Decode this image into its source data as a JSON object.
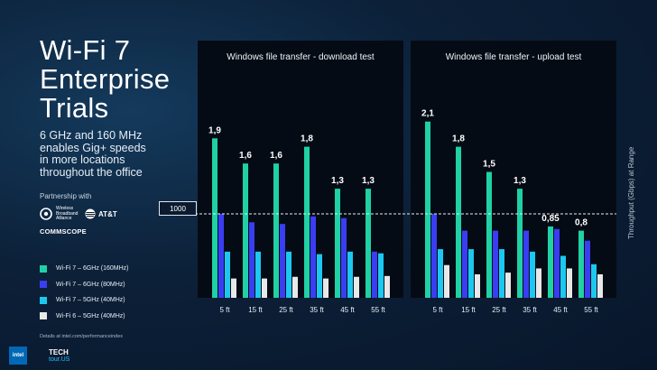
{
  "slide": {
    "title_lines": [
      "Wi-Fi 7",
      "Enterprise",
      "Trials"
    ],
    "subtitle_lines": [
      "6 GHz and 160 MHz",
      "enables Gig+ speeds",
      "in more locations",
      "throughout the office"
    ],
    "partnership_label": "Partnership with",
    "partners": {
      "wba": [
        "Wireless",
        "Broadband",
        "Alliance"
      ],
      "att": "AT&T",
      "commscope": "COMMSCOPE"
    },
    "footnote": "Details at intel.com/performanceindex",
    "brand": {
      "intel": "intel",
      "tech": "TECH",
      "tour": "tour.US"
    }
  },
  "colors": {
    "background": "#0b1a2e",
    "panel": "#050b15",
    "series": [
      "#1fd1a5",
      "#3a3ef2",
      "#1cc8f0",
      "#e8e8e8"
    ]
  },
  "chart_data": {
    "type": "bar",
    "y_axis_label": "Throughput (Gbps) at Range",
    "reference_line": {
      "label": "1000",
      "value": 1.0
    },
    "ylim": [
      0,
      2.2
    ],
    "legend": [
      "Wi-Fi 7 – 6GHz (160MHz)",
      "Wi-Fi 7 – 6GHz (80MHz)",
      "Wi-Fi 7 – 5GHz (40MHz)",
      "Wi-Fi 6 – 5GHz (40MHz)"
    ],
    "panels": [
      {
        "title": "Windows file transfer - download test",
        "categories": [
          "5 ft",
          "15 ft",
          "25 ft",
          "35 ft",
          "45 ft",
          "55 ft"
        ],
        "data_labels": [
          "1,9",
          "1,6",
          "1,6",
          "1,8",
          "1,3",
          "1,3"
        ],
        "series": [
          {
            "name": "Wi-Fi 7 – 6GHz (160MHz)",
            "values": [
              1.9,
              1.6,
              1.6,
              1.8,
              1.3,
              1.3
            ]
          },
          {
            "name": "Wi-Fi 7 – 6GHz (80MHz)",
            "values": [
              1.0,
              0.9,
              0.88,
              0.97,
              0.95,
              0.55
            ]
          },
          {
            "name": "Wi-Fi 7 – 5GHz (40MHz)",
            "values": [
              0.55,
              0.55,
              0.55,
              0.52,
              0.55,
              0.53
            ]
          },
          {
            "name": "Wi-Fi 6 – 5GHz (40MHz)",
            "values": [
              0.23,
              0.23,
              0.25,
              0.23,
              0.25,
              0.26
            ]
          }
        ]
      },
      {
        "title": "Windows file transfer - upload test",
        "categories": [
          "5 ft",
          "15 ft",
          "25 ft",
          "35 ft",
          "45 ft",
          "55 ft"
        ],
        "data_labels": [
          "2,1",
          "1,8",
          "1,5",
          "1,3",
          "0,85",
          "0,8"
        ],
        "series": [
          {
            "name": "Wi-Fi 7 – 6GHz (160MHz)",
            "values": [
              2.1,
              1.8,
              1.5,
              1.3,
              0.85,
              0.8
            ]
          },
          {
            "name": "Wi-Fi 7 – 6GHz (80MHz)",
            "values": [
              1.0,
              0.8,
              0.8,
              0.8,
              0.82,
              0.68
            ]
          },
          {
            "name": "Wi-Fi 7 – 5GHz (40MHz)",
            "values": [
              0.58,
              0.58,
              0.58,
              0.55,
              0.5,
              0.4
            ]
          },
          {
            "name": "Wi-Fi 6 – 5GHz (40MHz)",
            "values": [
              0.39,
              0.28,
              0.3,
              0.35,
              0.35,
              0.28
            ]
          }
        ]
      }
    ]
  }
}
